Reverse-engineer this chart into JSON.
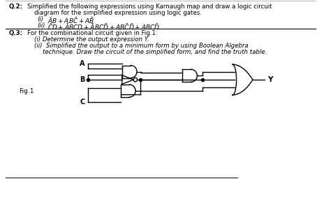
{
  "bg_color": "#ffffff",
  "text_color": "#1a1a1a",
  "line_color": "#000000",
  "q2_bold": "Q.2:",
  "q2_text1": " Simplified the following expressions using Karnaugh map and draw a logic circuit",
  "q2_text2": "diagram for the simplified expression using logic gates.",
  "q2_i_label": "(i)",
  "q2_ii_label": "(ii)",
  "q3_bold": "Q.3:",
  "q3_text": " For the combinational circuit given in Fig.1:",
  "q3_i": "(i) Determine the output expression Y.",
  "q3_ii_a": "(ii)  Simplified the output to a minimum form by using Boolean Algebra",
  "q3_ii_b": "technique. Draw the circuit of the simplified form, and find the truth table.",
  "fig_label": "Fig.1",
  "lw": 1.0,
  "fontsize_text": 6.2,
  "fontsize_math": 6.5,
  "fontsize_gate": 7.0
}
